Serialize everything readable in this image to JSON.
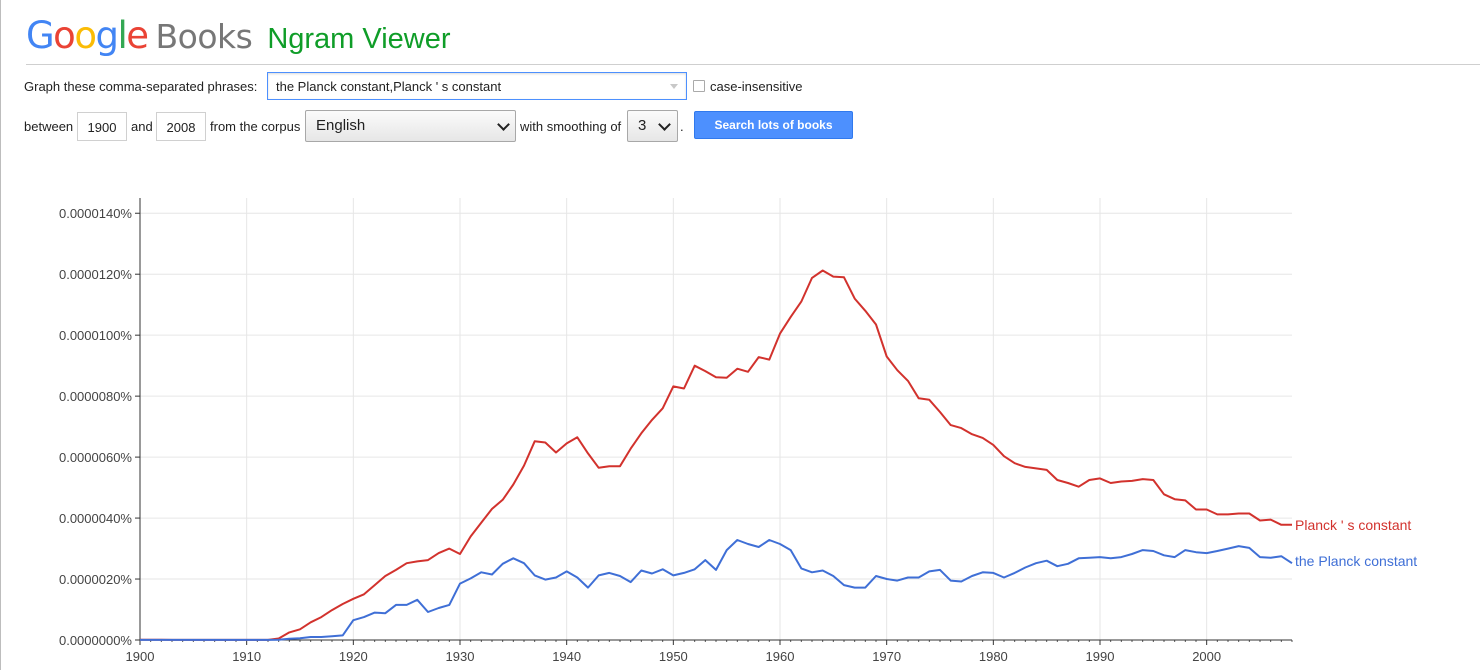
{
  "header": {
    "logo_google_letters": [
      {
        "char": "G",
        "color": "#4285f4"
      },
      {
        "char": "o",
        "color": "#ea4335"
      },
      {
        "char": "o",
        "color": "#fbbc05"
      },
      {
        "char": "g",
        "color": "#4285f4"
      },
      {
        "char": "l",
        "color": "#34a853"
      },
      {
        "char": "e",
        "color": "#ea4335"
      }
    ],
    "logo_books": "Books",
    "title": "Ngram Viewer"
  },
  "form": {
    "phrases_label": "Graph these comma-separated phrases:",
    "phrases_value": "the Planck constant,Planck ' s constant",
    "case_insensitive_label": "case-insensitive",
    "case_insensitive_checked": false,
    "between_label": "between",
    "start_year": "1900",
    "and_label": "and",
    "end_year": "2008",
    "corpus_label": "from the corpus",
    "corpus_value": "English",
    "smoothing_label": "with smoothing of",
    "smoothing_value": "3",
    "period": ".",
    "search_button": "Search lots of books",
    "accent_color": "#4d90fe"
  },
  "chart_data": {
    "type": "line",
    "title": "",
    "xlabel": "",
    "ylabel": "",
    "xlim": [
      1900,
      2008
    ],
    "ylim": [
      0,
      1.45e-06
    ],
    "grid": true,
    "x_ticks": [
      "1900",
      "1910",
      "1920",
      "1930",
      "1940",
      "1950",
      "1960",
      "1970",
      "1980",
      "1990",
      "2000"
    ],
    "y_ticks": [
      "0.0000000%",
      "0.0000020%",
      "0.0000040%",
      "0.0000060%",
      "0.0000080%",
      "0.0000100%",
      "0.0000120%",
      "0.0000140%"
    ],
    "x": [
      1900,
      1901,
      1902,
      1903,
      1904,
      1905,
      1906,
      1907,
      1908,
      1909,
      1910,
      1911,
      1912,
      1913,
      1914,
      1915,
      1916,
      1917,
      1918,
      1919,
      1920,
      1921,
      1922,
      1923,
      1924,
      1925,
      1926,
      1927,
      1928,
      1929,
      1930,
      1931,
      1932,
      1933,
      1934,
      1935,
      1936,
      1937,
      1938,
      1939,
      1940,
      1941,
      1942,
      1943,
      1944,
      1945,
      1946,
      1947,
      1948,
      1949,
      1950,
      1951,
      1952,
      1953,
      1954,
      1955,
      1956,
      1957,
      1958,
      1959,
      1960,
      1961,
      1962,
      1963,
      1964,
      1965,
      1966,
      1967,
      1968,
      1969,
      1970,
      1971,
      1972,
      1973,
      1974,
      1975,
      1976,
      1977,
      1978,
      1979,
      1980,
      1981,
      1982,
      1983,
      1984,
      1985,
      1986,
      1987,
      1988,
      1989,
      1990,
      1991,
      1992,
      1993,
      1994,
      1995,
      1996,
      1997,
      1998,
      1999,
      2000,
      2001,
      2002,
      2003,
      2004,
      2005,
      2006,
      2007,
      2008
    ],
    "series": [
      {
        "name": "Planck ' s constant",
        "color": "#d2322d",
        "values": [
          5e-10,
          5e-10,
          5e-10,
          4e-10,
          4e-10,
          4e-10,
          4e-10,
          4e-10,
          4e-10,
          4e-10,
          4e-10,
          4e-10,
          4e-10,
          5e-09,
          2.5e-08,
          3.5e-08,
          5.8e-08,
          7.5e-08,
          9.8e-08,
          1.18e-07,
          1.35e-07,
          1.5e-07,
          1.8e-07,
          2.1e-07,
          2.3e-07,
          2.52e-07,
          2.58e-07,
          2.62e-07,
          2.85e-07,
          3e-07,
          2.82e-07,
          3.4e-07,
          3.85e-07,
          4.3e-07,
          4.6e-07,
          5.1e-07,
          5.72e-07,
          6.52e-07,
          6.48e-07,
          6.15e-07,
          6.45e-07,
          6.65e-07,
          6.12e-07,
          5.65e-07,
          5.7e-07,
          5.7e-07,
          6.28e-07,
          6.78e-07,
          7.22e-07,
          7.6e-07,
          8.32e-07,
          8.25e-07,
          9e-07,
          8.82e-07,
          8.62e-07,
          8.6e-07,
          8.9e-07,
          8.8e-07,
          9.28e-07,
          9.2e-07,
          1.005e-06,
          1.06e-06,
          1.11e-06,
          1.188e-06,
          1.212e-06,
          1.192e-06,
          1.19e-06,
          1.12e-06,
          1.08e-06,
          1.035e-06,
          9.3e-07,
          8.85e-07,
          8.5e-07,
          7.93e-07,
          7.88e-07,
          7.48e-07,
          7.05e-07,
          6.95e-07,
          6.75e-07,
          6.63e-07,
          6.4e-07,
          6.03e-07,
          5.8e-07,
          5.68e-07,
          5.63e-07,
          5.58e-07,
          5.25e-07,
          5.15e-07,
          5.03e-07,
          5.25e-07,
          5.3e-07,
          5.15e-07,
          5.2e-07,
          5.22e-07,
          5.28e-07,
          5.25e-07,
          4.78e-07,
          4.62e-07,
          4.58e-07,
          4.28e-07,
          4.28e-07,
          4.12e-07,
          4.12e-07,
          4.15e-07,
          4.15e-07,
          3.92e-07,
          3.95e-07,
          3.78e-07,
          3.78e-07
        ]
      },
      {
        "name": "the Planck constant",
        "color": "#3f6fd6",
        "values": [
          2e-10,
          2e-10,
          2e-10,
          2e-10,
          2e-10,
          2e-10,
          2e-10,
          2e-10,
          2e-10,
          2e-10,
          2e-10,
          2e-10,
          2e-10,
          1e-09,
          4e-09,
          6e-09,
          1e-08,
          1e-08,
          1.2e-08,
          1.5e-08,
          6.5e-08,
          7.5e-08,
          9e-08,
          8.8e-08,
          1.15e-07,
          1.15e-07,
          1.32e-07,
          9.2e-08,
          1.05e-07,
          1.15e-07,
          1.85e-07,
          2.02e-07,
          2.22e-07,
          2.15e-07,
          2.5e-07,
          2.68e-07,
          2.52e-07,
          2.12e-07,
          1.98e-07,
          2.05e-07,
          2.25e-07,
          2.05e-07,
          1.72e-07,
          2.12e-07,
          2.2e-07,
          2.1e-07,
          1.9e-07,
          2.28e-07,
          2.18e-07,
          2.32e-07,
          2.12e-07,
          2.2e-07,
          2.32e-07,
          2.62e-07,
          2.3e-07,
          2.95e-07,
          3.28e-07,
          3.15e-07,
          3.05e-07,
          3.28e-07,
          3.15e-07,
          2.95e-07,
          2.35e-07,
          2.22e-07,
          2.28e-07,
          2.1e-07,
          1.8e-07,
          1.72e-07,
          1.72e-07,
          2.1e-07,
          2e-07,
          1.95e-07,
          2.05e-07,
          2.05e-07,
          2.25e-07,
          2.3e-07,
          1.95e-07,
          1.92e-07,
          2.1e-07,
          2.22e-07,
          2.2e-07,
          2.05e-07,
          2.2e-07,
          2.38e-07,
          2.52e-07,
          2.6e-07,
          2.42e-07,
          2.5e-07,
          2.68e-07,
          2.7e-07,
          2.72e-07,
          2.68e-07,
          2.72e-07,
          2.82e-07,
          2.95e-07,
          2.92e-07,
          2.78e-07,
          2.72e-07,
          2.95e-07,
          2.88e-07,
          2.85e-07,
          2.92e-07,
          3e-07,
          3.08e-07,
          3.02e-07,
          2.72e-07,
          2.7e-07,
          2.75e-07,
          2.52e-07
        ]
      }
    ]
  }
}
